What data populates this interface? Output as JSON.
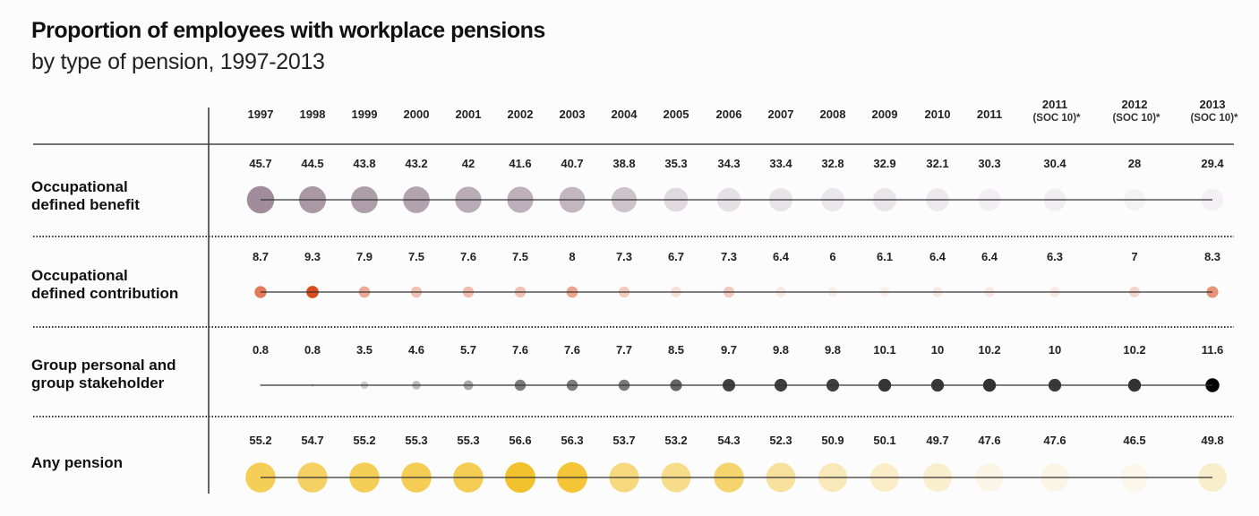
{
  "chart_data": {
    "type": "dot-table",
    "title": "Proportion of employees with workplace pensions",
    "subtitle": "by type of pension, 1997-2013",
    "columns": [
      {
        "year": "1997",
        "note": ""
      },
      {
        "year": "1998",
        "note": ""
      },
      {
        "year": "1999",
        "note": ""
      },
      {
        "year": "2000",
        "note": ""
      },
      {
        "year": "2001",
        "note": ""
      },
      {
        "year": "2002",
        "note": ""
      },
      {
        "year": "2003",
        "note": ""
      },
      {
        "year": "2004",
        "note": ""
      },
      {
        "year": "2005",
        "note": ""
      },
      {
        "year": "2006",
        "note": ""
      },
      {
        "year": "2007",
        "note": ""
      },
      {
        "year": "2008",
        "note": ""
      },
      {
        "year": "2009",
        "note": ""
      },
      {
        "year": "2010",
        "note": ""
      },
      {
        "year": "2011",
        "note": ""
      },
      {
        "year": "2011",
        "note": "(SOC 10)*"
      },
      {
        "year": "2012",
        "note": "(SOC 10)*"
      },
      {
        "year": "2013",
        "note": "(SOC 10)*"
      }
    ],
    "series": [
      {
        "name": [
          "Occupational",
          "defined benefit"
        ],
        "color": "#9e8a99",
        "values": [
          45.7,
          44.5,
          43.8,
          43.2,
          42,
          41.6,
          40.7,
          38.8,
          35.3,
          34.3,
          33.4,
          32.8,
          32.9,
          32.1,
          30.3,
          30.4,
          28,
          29.4
        ]
      },
      {
        "name": [
          "Occupational",
          "defined contribution"
        ],
        "color": "#d9481a",
        "values": [
          8.7,
          9.3,
          7.9,
          7.5,
          7.6,
          7.5,
          8,
          7.3,
          6.7,
          7.3,
          6.4,
          6,
          6.1,
          6.4,
          6.4,
          6.3,
          7,
          8.3
        ]
      },
      {
        "name": [
          "Group personal and",
          "group stakeholder"
        ],
        "color": "#000000",
        "values": [
          0.8,
          0.8,
          3.5,
          4.6,
          5.7,
          7.6,
          7.6,
          7.7,
          8.5,
          9.7,
          9.8,
          9.8,
          10.1,
          10,
          10.2,
          10,
          10.2,
          11.6
        ]
      },
      {
        "name": [
          "Any pension"
        ],
        "color": "#f2c12a",
        "values": [
          55.2,
          54.7,
          55.2,
          55.3,
          55.3,
          56.6,
          56.3,
          53.7,
          53.2,
          54.3,
          52.3,
          50.9,
          50.1,
          49.7,
          47.6,
          47.6,
          46.5,
          49.8
        ]
      }
    ]
  }
}
